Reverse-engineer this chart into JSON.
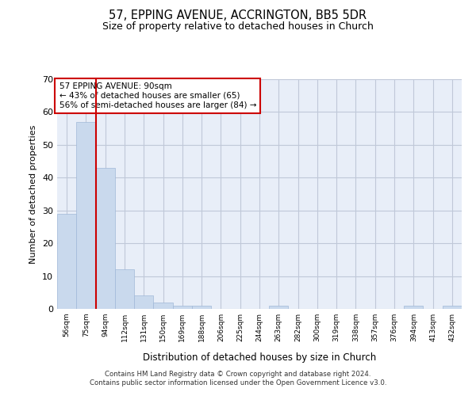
{
  "title": "57, EPPING AVENUE, ACCRINGTON, BB5 5DR",
  "subtitle": "Size of property relative to detached houses in Church",
  "xlabel": "Distribution of detached houses by size in Church",
  "ylabel": "Number of detached properties",
  "bar_color": "#c9d9ed",
  "bar_edge_color": "#a0b8d8",
  "grid_color": "#c0c8d8",
  "bg_color": "#e8eef8",
  "categories": [
    "56sqm",
    "75sqm",
    "94sqm",
    "112sqm",
    "131sqm",
    "150sqm",
    "169sqm",
    "188sqm",
    "206sqm",
    "225sqm",
    "244sqm",
    "263sqm",
    "282sqm",
    "300sqm",
    "319sqm",
    "338sqm",
    "357sqm",
    "376sqm",
    "394sqm",
    "413sqm",
    "432sqm"
  ],
  "values": [
    29,
    57,
    43,
    12,
    4,
    2,
    1,
    1,
    0,
    0,
    0,
    1,
    0,
    0,
    0,
    0,
    0,
    0,
    1,
    0,
    1
  ],
  "ylim": [
    0,
    70
  ],
  "yticks": [
    0,
    10,
    20,
    30,
    40,
    50,
    60,
    70
  ],
  "annotation_text": "57 EPPING AVENUE: 90sqm\n← 43% of detached houses are smaller (65)\n56% of semi-detached houses are larger (84) →",
  "annotation_box_color": "#ffffff",
  "annotation_box_edge": "#cc0000",
  "red_line_color": "#cc0000",
  "footer_line1": "Contains HM Land Registry data © Crown copyright and database right 2024.",
  "footer_line2": "Contains public sector information licensed under the Open Government Licence v3.0."
}
